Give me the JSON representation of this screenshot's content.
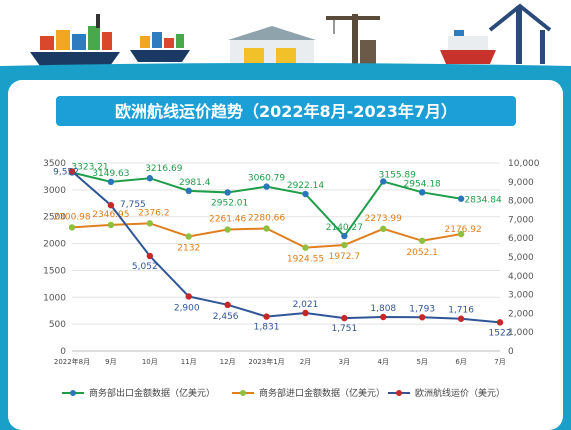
{
  "title": "欧洲航线运价趋势（2022年8月-2023年7月）",
  "colors": {
    "background_top": "#ffffff",
    "frame": "#1aa0c8",
    "frame_dark": "#0f7fa8",
    "title_banner": "#1c9fd6",
    "export_line": "#1f9e4a",
    "export_marker": "#2a76b8",
    "import_line": "#e07f1d",
    "import_marker": "#8fbf3f",
    "freight_line": "#2f5597",
    "freight_marker": "#c62828"
  },
  "chart_data": {
    "type": "line",
    "categories": [
      "2022年8月",
      "9月",
      "10月",
      "11月",
      "12月",
      "2023年1月",
      "2月",
      "3月",
      "4月",
      "5月",
      "6月",
      "7月"
    ],
    "left_axis": {
      "ylim": [
        0,
        3500
      ],
      "ticks": [
        "0",
        "500",
        "1000",
        "1500",
        "2000",
        "2500",
        "3000",
        "3500"
      ]
    },
    "right_axis": {
      "ylim": [
        0,
        10000
      ],
      "ticks": [
        "0",
        "1,000",
        "2,000",
        "3,000",
        "4,000",
        "5,000",
        "6,000",
        "7,000",
        "8,000",
        "9,000",
        "10,000"
      ]
    },
    "legend_position": "bottom",
    "series": [
      {
        "name": "商务部出口金额数据（亿美元）",
        "axis": "left",
        "values": [
          3323.21,
          3149.63,
          3216.69,
          2981.4,
          2952.01,
          3060.79,
          2922.14,
          2140.27,
          3155.89,
          2954.18,
          2834.84,
          null
        ],
        "labels": [
          "3323.21",
          "3149.63",
          "3216.69",
          "2981.4",
          "2952.01",
          "3060.79",
          "2922.14",
          "2140.27",
          "3155.89",
          "2954.18",
          "2834.84",
          ""
        ]
      },
      {
        "name": "商务部进口金额数据（亿美元）",
        "axis": "left",
        "values": [
          2300.98,
          2346.95,
          2376.2,
          2132,
          2261.46,
          2280.66,
          1924.55,
          1972.7,
          2273.99,
          2052.1,
          2176.92,
          null
        ],
        "labels": [
          "2300.98",
          "2346.95",
          "2376.2",
          "2132",
          "2261.46",
          "2280.66",
          "1924.55",
          "1972.7",
          "2273.99",
          "2052.1",
          "2176.92",
          ""
        ]
      },
      {
        "name": "欧洲航线运价（美元）",
        "axis": "right",
        "values": [
          9552,
          7755,
          5052,
          2900,
          2456,
          1831,
          2021,
          1751,
          1808,
          1793,
          1716,
          1522
        ],
        "labels": [
          "9,552",
          "7,755",
          "5,052",
          "2,900",
          "2,456",
          "1,831",
          "2,021",
          "1,751",
          "1,808",
          "1,793",
          "1,716",
          "1522"
        ]
      }
    ]
  }
}
